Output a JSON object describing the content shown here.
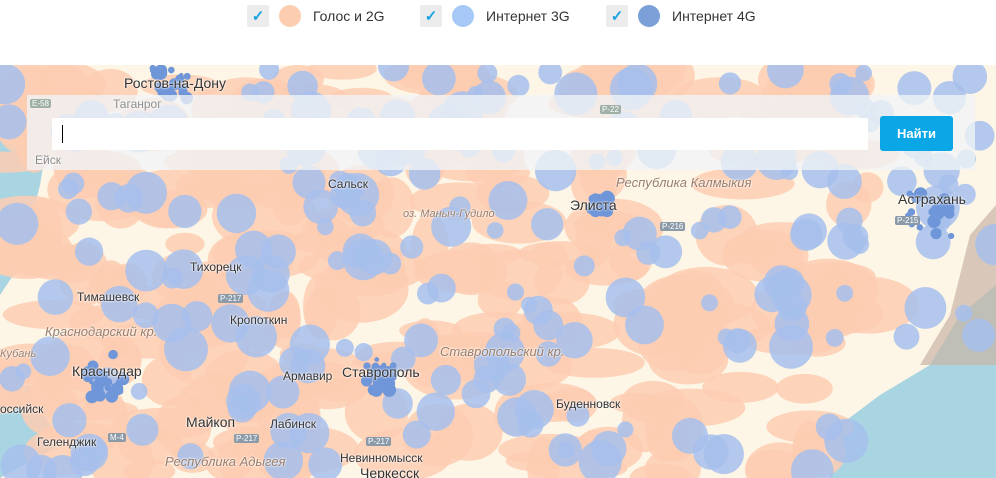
{
  "legend": {
    "items": [
      {
        "label": "Голос и 2G",
        "checked": true,
        "color": "#fdcdb1"
      },
      {
        "label": "Интернет 3G",
        "checked": true,
        "color": "#a6c8f6"
      },
      {
        "label": "Интернет 4G",
        "checked": true,
        "color": "#7ba0d8"
      }
    ],
    "check_glyph": "✓"
  },
  "search": {
    "value": "",
    "placeholder": "",
    "button_label": "Найти",
    "button_color": "#0aa6e6"
  },
  "map": {
    "colors": {
      "land": "#fdf6e6",
      "sea": "#a9d4e2",
      "coverage_2g": "#fdcdb1",
      "coverage_3g": "#a6c0ec",
      "coverage_4g": "#6f96d8"
    },
    "places": {
      "rostov": "Ростов-на-Дону",
      "taganrog": "Таганрог",
      "yeysk": "Ейск",
      "salsk": "Сальск",
      "manych": "оз. Маныч-Гудило",
      "elista": "Элиста",
      "kalmykia": "Республика Калмыкия",
      "astrakhan": "Астрахань",
      "tikhoretsk": "Тихорецк",
      "timashevsk": "Тимашевск",
      "krasnodar_kr": "Краснодарский кр.",
      "kropotkin": "Кропоткин",
      "kuban": "Кубань",
      "krasnodar": "Краснодар",
      "armavir": "Армавир",
      "stavropol": "Ставрополь",
      "stavropol_kr": "Ставропольский кр.",
      "budennovsk": "Буденновск",
      "maykop": "Майкоп",
      "labinsk": "Лабинск",
      "nevinnomyssk": "Невинномысск",
      "gelendzhik": "Геленджик",
      "adygea": "Республика Адыгея",
      "cherkessk": "Черкесск",
      "novorossiysk": "оссийск"
    },
    "roads": {
      "e58": "E-58",
      "p22": "P-22",
      "p216": "P-216",
      "p215": "P-215",
      "p217a": "P-217",
      "p217b": "P-217",
      "p217c": "P-217",
      "m4": "M-4"
    }
  }
}
